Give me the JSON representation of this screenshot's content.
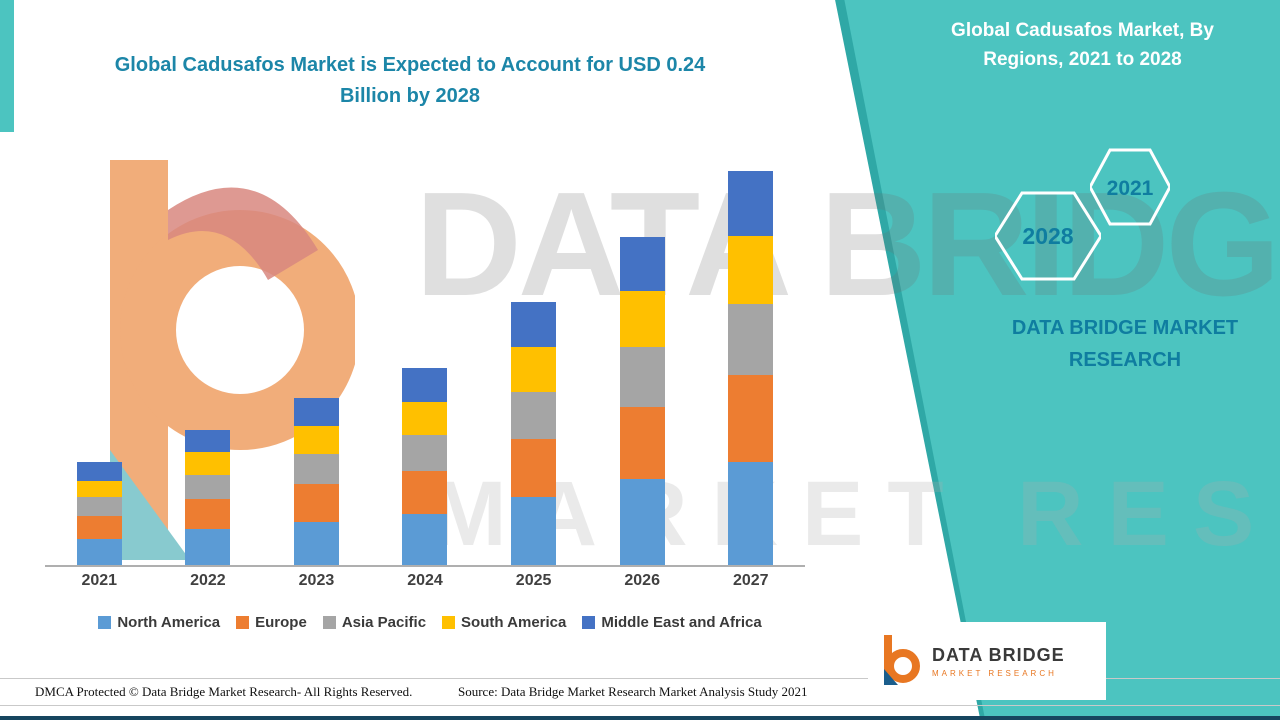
{
  "header": {
    "title_line1": "Global Cadusafos Market is Expected to Account for USD 0.24",
    "title_line2": "Billion by 2028"
  },
  "side_panel": {
    "title_line1": "Global Cadusafos Market, By",
    "title_line2": "Regions, 2021 to 2028",
    "hex_small_year": "2021",
    "hex_large_year": "2028",
    "brand_line1": "DATA BRIDGE MARKET",
    "brand_line2": "RESEARCH"
  },
  "logo": {
    "name": "DATA BRIDGE",
    "subtitle": "MARKET RESEARCH"
  },
  "watermark": {
    "line1": "DATA BRIDGE",
    "line2": "MARKET RESEARCH"
  },
  "footer": {
    "dmca": "DMCA Protected © Data Bridge Market Research- All Rights Reserved.",
    "source": "Source: Data Bridge Market Research Market Analysis Study 2021"
  },
  "chart_data": {
    "type": "bar",
    "stacked": true,
    "title": "Global Cadusafos Market is Expected to Account for USD 0.24 Billion by 2028",
    "unit": "USD Billion",
    "categories": [
      "2021",
      "2022",
      "2023",
      "2024",
      "2025",
      "2026",
      "2027"
    ],
    "series": [
      {
        "name": "North America",
        "color": "#5B9BD5",
        "values": [
          0.014,
          0.019,
          0.023,
          0.027,
          0.036,
          0.046,
          0.055
        ]
      },
      {
        "name": "Europe",
        "color": "#ED7D31",
        "values": [
          0.012,
          0.016,
          0.02,
          0.023,
          0.031,
          0.038,
          0.046
        ]
      },
      {
        "name": "Asia Pacific",
        "color": "#A5A5A5",
        "values": [
          0.01,
          0.013,
          0.016,
          0.019,
          0.025,
          0.032,
          0.038
        ]
      },
      {
        "name": "South America",
        "color": "#FFC000",
        "values": [
          0.009,
          0.012,
          0.015,
          0.018,
          0.024,
          0.03,
          0.036
        ]
      },
      {
        "name": "Middle East and Africa",
        "color": "#4472C4",
        "values": [
          0.01,
          0.012,
          0.015,
          0.018,
          0.024,
          0.029,
          0.035
        ]
      }
    ],
    "totals": [
      0.055,
      0.072,
      0.089,
      0.105,
      0.14,
      0.175,
      0.21
    ],
    "ylim": [
      0,
      0.22
    ],
    "grid": false,
    "legend_position": "bottom",
    "accent_teal": "#4CC4C0",
    "title_color": "#1C86A8"
  }
}
